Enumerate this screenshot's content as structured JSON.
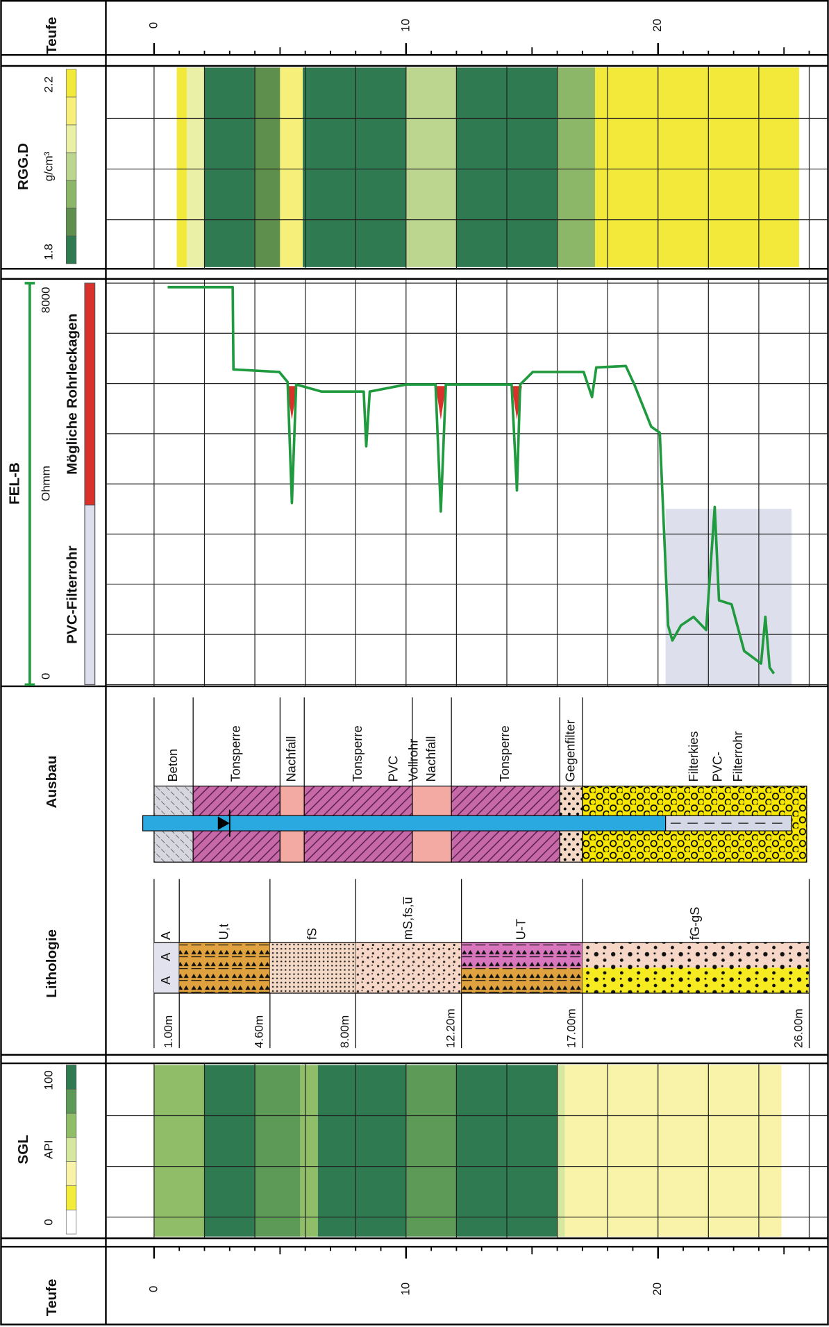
{
  "depth_axis": {
    "title": "Teufe",
    "range": [
      0,
      27
    ],
    "ticks": [
      0,
      10,
      20
    ]
  },
  "rgg_d": {
    "title": "RGG.D",
    "unit": "g/cm³",
    "scale": [
      1.8,
      2.2
    ],
    "ticks": [
      1.8,
      2.2
    ],
    "colors": [
      "#2f7a50",
      "#5f8f4c",
      "#8db768",
      "#bcd58f",
      "#eaf0a6",
      "#f6f07a",
      "#f3e93a"
    ],
    "profile": [
      {
        "from": 0.9,
        "to": 1.3,
        "value": 2.15
      },
      {
        "from": 1.3,
        "to": 2.0,
        "value": 2.05
      },
      {
        "from": 2.0,
        "to": 4.0,
        "value": 1.82
      },
      {
        "from": 4.0,
        "to": 5.0,
        "value": 1.9
      },
      {
        "from": 5.0,
        "to": 5.9,
        "value": 2.1
      },
      {
        "from": 5.9,
        "to": 8.0,
        "value": 1.85
      },
      {
        "from": 8.0,
        "to": 10.0,
        "value": 1.83
      },
      {
        "from": 10.0,
        "to": 12.0,
        "value": 1.98
      },
      {
        "from": 12.0,
        "to": 16.0,
        "value": 1.82
      },
      {
        "from": 16.0,
        "to": 17.5,
        "value": 1.92
      },
      {
        "from": 17.5,
        "to": 20.0,
        "value": 2.15
      },
      {
        "from": 20.0,
        "to": 25.6,
        "value": 2.18
      }
    ]
  },
  "fel_b": {
    "title": "FEL-B",
    "unit": "Ohmm",
    "scale": [
      0,
      8000
    ],
    "ticks": [
      0,
      8000
    ],
    "legend": [
      {
        "label": "Mögliche Rohrleckagen",
        "color": "#d9302a"
      },
      {
        "label": "PVC-Filterrohr",
        "color": "#dde0ec"
      }
    ],
    "leaks": [
      5.47,
      11.38,
      14.4
    ],
    "curve": {
      "color": "#1f9a3e",
      "depth": [
        0.54,
        3.12,
        3.15,
        4.97,
        5.3,
        5.47,
        5.64,
        6.64,
        8.32,
        8.42,
        8.56,
        10.0,
        11.17,
        11.38,
        11.58,
        14.19,
        14.4,
        14.53,
        15.03,
        17.05,
        17.38,
        17.55,
        18.72,
        19.06,
        19.73,
        20.07,
        20.4,
        20.57,
        20.91,
        21.41,
        21.91,
        22.25,
        22.42,
        22.92,
        23.42,
        24.09,
        24.26,
        24.43,
        24.6
      ],
      "values": [
        7920,
        7920,
        6280,
        6230,
        6030,
        3620,
        5980,
        5840,
        5840,
        4750,
        5840,
        5980,
        5980,
        3450,
        5980,
        5980,
        3870,
        5980,
        6230,
        6230,
        5730,
        6320,
        6350,
        5980,
        5140,
        5020,
        1180,
        880,
        1180,
        1350,
        1090,
        3540,
        1680,
        1600,
        670,
        420,
        1350,
        340,
        220
      ]
    }
  },
  "ausbau": {
    "title": "Ausbau",
    "water_level": 2.8,
    "segments": [
      {
        "lines": [
          "Beton"
        ],
        "from": 0,
        "to": 1.55
      },
      {
        "lines": [
          "Tonsperre"
        ],
        "from": 1.55,
        "to": 5.0
      },
      {
        "lines": [
          "Nachfall"
        ],
        "from": 5.0,
        "to": 5.96
      },
      {
        "lines": [
          "Tonsperre"
        ],
        "from": 5.96,
        "to": 10.25
      },
      {
        "lines": [
          "Nachfall"
        ],
        "from": 10.25,
        "to": 11.8
      },
      {
        "lines": [
          "Tonsperre"
        ],
        "from": 11.8,
        "to": 16.1
      },
      {
        "lines": [
          "Gegenfilter"
        ],
        "from": 16.1,
        "to": 17.0
      },
      {
        "lines": [
          "Filterkies"
        ],
        "from": 17.0,
        "to": 25.9
      }
    ],
    "pipe": [
      {
        "lines": [
          "PVC",
          "Vollrohr"
        ],
        "from": -0.45,
        "to": 20.3
      },
      {
        "lines": [
          "PVC-",
          "Filterrohr"
        ],
        "from": 20.3,
        "to": 25.3
      }
    ]
  },
  "lithologie": {
    "title": "Lithologie",
    "layers": [
      {
        "name": "A",
        "symbol": "A",
        "base": {
          "value": 1.0,
          "label": "1.00m"
        },
        "colors": [
          "#e2e2ee",
          "#e2e2ee"
        ]
      },
      {
        "name": "U,t",
        "base": {
          "value": 4.6,
          "label": "4.60m"
        },
        "colors": [
          "#e0a23e",
          "#e0a23e"
        ]
      },
      {
        "name": "fS",
        "base": {
          "value": 8.0,
          "label": "8.00m"
        },
        "colors": [
          "#f3d8c6",
          "#f3d8c6"
        ]
      },
      {
        "name": "mS,fs,u̅",
        "base": {
          "value": 12.2,
          "label": "12.20m"
        },
        "colors": [
          "#f6d6c6",
          "#f6d6c6"
        ]
      },
      {
        "name": "U-T",
        "base": {
          "value": 17.0,
          "label": "17.00m"
        },
        "colors": [
          "#d776bd",
          "#e0a23e"
        ]
      },
      {
        "name": "fG-gS",
        "base": {
          "value": 26.0,
          "label": "26.00m"
        },
        "colors": [
          "#f6d6c6",
          "#f6ea20"
        ]
      }
    ]
  },
  "sgl": {
    "title": "SGL",
    "unit": "API",
    "scale": [
      0,
      100
    ],
    "ticks": [
      0,
      100
    ],
    "colors": [
      "#ffffff",
      "#f4ec3a",
      "#f8f3a8",
      "#d6e8a0",
      "#8fbd68",
      "#5d9a58",
      "#2f7a50"
    ],
    "profile": [
      {
        "from": 0,
        "to": 2.0,
        "value": 60
      },
      {
        "from": 2.0,
        "to": 4.0,
        "value": 92
      },
      {
        "from": 4.0,
        "to": 5.8,
        "value": 75
      },
      {
        "from": 5.8,
        "to": 6.5,
        "value": 62
      },
      {
        "from": 6.5,
        "to": 8.0,
        "value": 92
      },
      {
        "from": 8.0,
        "to": 10.0,
        "value": 88
      },
      {
        "from": 10.0,
        "to": 12.0,
        "value": 78
      },
      {
        "from": 12.0,
        "to": 16.0,
        "value": 95
      },
      {
        "from": 16.0,
        "to": 16.3,
        "value": 45
      },
      {
        "from": 16.3,
        "to": 24.9,
        "value": 30
      }
    ]
  }
}
